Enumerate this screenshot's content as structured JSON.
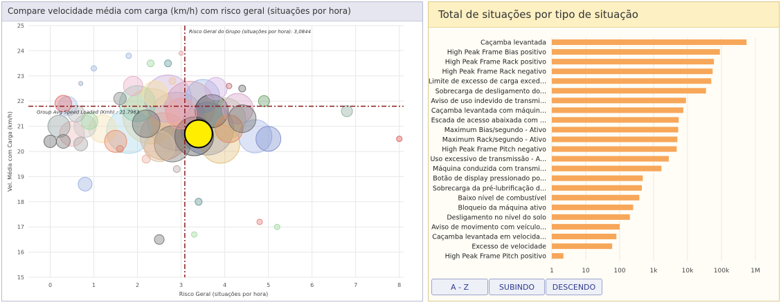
{
  "left_panel": {
    "title": "Compare velocidade média com carga (km/h) com risco geral (situações por hora)"
  },
  "right_panel": {
    "title": "Total de situações por tipo de situação"
  },
  "sort_buttons": {
    "az": "A - Z",
    "asc": "SUBINDO",
    "desc": "DESCENDO"
  },
  "chart_data": [
    {
      "type": "scatter",
      "subtype": "bubble",
      "xlabel": "Risco Geral (situações por hora)",
      "ylabel": "Vel. Média com Carga (km/h)",
      "xlim": [
        -0.5,
        8.1
      ],
      "ylim": [
        15,
        25
      ],
      "x_ticks": [
        0,
        1,
        2,
        3,
        4,
        5,
        6,
        7,
        8
      ],
      "y_ticks": [
        15,
        16,
        17,
        18,
        19,
        20,
        21,
        22,
        23,
        24,
        25
      ],
      "grid": true,
      "ref_lines": {
        "x_value": 3.0844,
        "x_label": "Risco Geral do Grupo (situações por hora): 3,0844",
        "y_value": 21.7963,
        "y_label": "Group Avg Speed Loaded (Kmh) : 21.7963"
      },
      "points": [
        {
          "x": 3.4,
          "y": 20.7,
          "s": 20,
          "color": "#ffee00",
          "highlight": true
        },
        {
          "x": 2.9,
          "y": 21.2,
          "s": 42,
          "color": "#b0b0b0"
        },
        {
          "x": 3.6,
          "y": 20.9,
          "s": 38,
          "color": "#7f8cc9"
        },
        {
          "x": 2.6,
          "y": 20.6,
          "s": 34,
          "color": "#e8a07a"
        },
        {
          "x": 2.3,
          "y": 21.4,
          "s": 40,
          "color": "#f2d28a"
        },
        {
          "x": 3.2,
          "y": 21.8,
          "s": 36,
          "color": "#e89aa6"
        },
        {
          "x": 1.8,
          "y": 20.8,
          "s": 32,
          "color": "#a9d8e8"
        },
        {
          "x": 4.0,
          "y": 21.3,
          "s": 30,
          "color": "#b8d8a0"
        },
        {
          "x": 2.7,
          "y": 22.1,
          "s": 34,
          "color": "#c7a9d8"
        },
        {
          "x": 3.9,
          "y": 20.3,
          "s": 28,
          "color": "#e1c17a"
        },
        {
          "x": 2.0,
          "y": 21.9,
          "s": 26,
          "color": "#8fd0b8"
        },
        {
          "x": 4.3,
          "y": 21.7,
          "s": 22,
          "color": "#d4a3c9"
        },
        {
          "x": 3.5,
          "y": 22.2,
          "s": 24,
          "color": "#9ab6e0"
        },
        {
          "x": 2.5,
          "y": 20.2,
          "s": 22,
          "color": "#d8c0a0"
        },
        {
          "x": 4.7,
          "y": 20.6,
          "s": 24,
          "color": "#aab8e8"
        },
        {
          "x": 5.0,
          "y": 20.5,
          "s": 18,
          "color": "#7d8fd0"
        },
        {
          "x": 3.3,
          "y": 20.6,
          "s": 28,
          "color": "#555555"
        },
        {
          "x": 4.1,
          "y": 20.9,
          "s": 20,
          "color": "#e08c5a"
        },
        {
          "x": 2.2,
          "y": 21.1,
          "s": 20,
          "color": "#6b6b6b"
        },
        {
          "x": 1.2,
          "y": 20.9,
          "s": 20,
          "color": "#f6e0b0"
        },
        {
          "x": 1.5,
          "y": 20.4,
          "s": 16,
          "color": "#e89070"
        },
        {
          "x": 0.8,
          "y": 21.0,
          "s": 16,
          "color": "#c8c8c8"
        },
        {
          "x": 0.5,
          "y": 20.7,
          "s": 18,
          "color": "#f0b8b8"
        },
        {
          "x": 0.2,
          "y": 21.0,
          "s": 16,
          "color": "#90a0a0"
        },
        {
          "x": 0.4,
          "y": 21.8,
          "s": 14,
          "color": "#b0c4e8"
        },
        {
          "x": 0.6,
          "y": 21.5,
          "s": 12,
          "color": "#b8b8b8"
        },
        {
          "x": 0.9,
          "y": 21.2,
          "s": 12,
          "color": "#a0d8a0"
        },
        {
          "x": 0.3,
          "y": 20.4,
          "s": 10,
          "color": "#777777"
        },
        {
          "x": 0.0,
          "y": 20.4,
          "s": 9,
          "color": "#666666"
        },
        {
          "x": 0.7,
          "y": 20.3,
          "s": 10,
          "color": "#a8a8a8"
        },
        {
          "x": 0.3,
          "y": 21.9,
          "s": 12,
          "color": "#e07070"
        },
        {
          "x": 1.6,
          "y": 22.1,
          "s": 9,
          "color": "#888888"
        },
        {
          "x": 2.8,
          "y": 20.3,
          "s": 26,
          "color": "#777777"
        },
        {
          "x": 3.7,
          "y": 21.6,
          "s": 24,
          "color": "#444444"
        },
        {
          "x": 4.4,
          "y": 21.3,
          "s": 20,
          "color": "#707070"
        },
        {
          "x": 3.0,
          "y": 21.5,
          "s": 22,
          "color": "#f0a0a0"
        },
        {
          "x": 2.4,
          "y": 22.3,
          "s": 18,
          "color": "#f5e098"
        },
        {
          "x": 1.9,
          "y": 22.6,
          "s": 14,
          "color": "#e8b0c8"
        },
        {
          "x": 3.8,
          "y": 22.5,
          "s": 16,
          "color": "#d0b0e0"
        },
        {
          "x": 4.9,
          "y": 22.0,
          "s": 8,
          "color": "#6aa06a"
        },
        {
          "x": 6.8,
          "y": 21.6,
          "s": 8,
          "color": "#8fb0a0"
        },
        {
          "x": 8.0,
          "y": 20.5,
          "s": 4,
          "color": "#e06060"
        },
        {
          "x": 0.8,
          "y": 18.7,
          "s": 10,
          "color": "#9aaee0"
        },
        {
          "x": 3.4,
          "y": 18.0,
          "s": 5,
          "color": "#6a9a9a"
        },
        {
          "x": 2.5,
          "y": 16.5,
          "s": 7,
          "color": "#777777"
        },
        {
          "x": 3.3,
          "y": 16.7,
          "s": 4,
          "color": "#a0d8a0"
        },
        {
          "x": 4.8,
          "y": 17.2,
          "s": 4,
          "color": "#e88080"
        },
        {
          "x": 5.2,
          "y": 17.0,
          "s": 4,
          "color": "#a0d8a0"
        },
        {
          "x": 1.0,
          "y": 23.3,
          "s": 4,
          "color": "#a0b8e0"
        },
        {
          "x": 1.8,
          "y": 23.8,
          "s": 4,
          "color": "#a0b8e0"
        },
        {
          "x": 2.3,
          "y": 23.5,
          "s": 5,
          "color": "#a0d8a0"
        },
        {
          "x": 2.7,
          "y": 23.5,
          "s": 5,
          "color": "#6aa0a0"
        },
        {
          "x": 3.0,
          "y": 23.9,
          "s": 3,
          "color": "#e8a0a0"
        },
        {
          "x": 0.7,
          "y": 22.7,
          "s": 3,
          "color": "#a0b0c8"
        },
        {
          "x": 2.8,
          "y": 22.8,
          "s": 5,
          "color": "#f0c8a0"
        },
        {
          "x": 4.1,
          "y": 22.6,
          "s": 4,
          "color": "#c07070"
        },
        {
          "x": 4.4,
          "y": 22.5,
          "s": 5,
          "color": "#707070"
        },
        {
          "x": 2.9,
          "y": 19.3,
          "s": 5,
          "color": "#b8a8a8"
        },
        {
          "x": 2.2,
          "y": 19.7,
          "s": 6,
          "color": "#e8b0a0"
        },
        {
          "x": 1.6,
          "y": 20.1,
          "s": 5,
          "color": "#e08c70"
        }
      ]
    },
    {
      "type": "bar",
      "orientation": "horizontal",
      "x_scale": "log",
      "x_ticks": [
        "1",
        "10",
        "100",
        "1k",
        "10k",
        "100k",
        "1M"
      ],
      "x_tick_values": [
        1,
        10,
        100,
        1000,
        10000,
        100000,
        1000000
      ],
      "bar_color": "#f7a75a",
      "categories": [
        "Caçamba levantada",
        "High Peak Frame Bias positivo",
        "High Peak Frame Rack positivo",
        "High Peak Frame Rack negativo",
        "Limite de excesso de carga exced...",
        "Sobrecarga de desligamento do...",
        "Aviso de uso indevido de transmi...",
        "Caçamba levantada com máquin...",
        "Escada de acesso abaixada com ...",
        "Maximum Bias/segundo - Ativo",
        "Maximum Rack/segundo - Ativo",
        "High Peak Frame Pitch negativo",
        "Uso excessivo de transmissão - A...",
        "Máquina conduzida com transmi...",
        "Botão de display pressionado po...",
        "Sobrecarga da pré-lubrificação d...",
        "Baixo nível de combustível",
        "Bloqueio da máquina ativo",
        "Desligamento no nível do solo",
        "Aviso de movimento com veículo...",
        "Caçamba levantada em velocida...",
        "Excesso de velocidade",
        "High Peak Frame Pitch positivo"
      ],
      "values": [
        550000,
        90000,
        60000,
        55000,
        50000,
        35000,
        9000,
        7500,
        5500,
        5300,
        5000,
        4800,
        2800,
        1700,
        480,
        450,
        380,
        250,
        200,
        100,
        80,
        60,
        2.2
      ]
    }
  ]
}
